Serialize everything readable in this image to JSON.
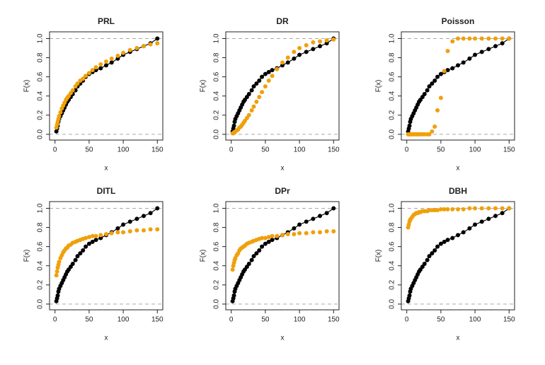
{
  "chart_data": [
    {
      "type": "scatter",
      "title": "PRL",
      "xlabel": "x",
      "ylabel": "F(x)",
      "x": [
        2,
        3,
        4,
        5,
        6,
        8,
        10,
        12,
        14,
        16,
        18,
        20,
        23,
        26,
        30,
        33,
        37,
        41,
        45,
        50,
        55,
        60,
        67,
        75,
        83,
        92,
        100,
        110,
        120,
        130,
        140,
        150
      ],
      "series": [
        {
          "color": "#000000",
          "line": true,
          "values": [
            0.03,
            0.06,
            0.09,
            0.13,
            0.16,
            0.19,
            0.22,
            0.25,
            0.28,
            0.31,
            0.34,
            0.36,
            0.39,
            0.42,
            0.46,
            0.5,
            0.53,
            0.56,
            0.6,
            0.63,
            0.65,
            0.67,
            0.69,
            0.72,
            0.75,
            0.79,
            0.83,
            0.86,
            0.89,
            0.92,
            0.95,
            1.0
          ]
        },
        {
          "color": "#f0a00a",
          "values": [
            0.07,
            0.1,
            0.13,
            0.16,
            0.19,
            0.23,
            0.27,
            0.3,
            0.33,
            0.36,
            0.38,
            0.4,
            0.43,
            0.46,
            0.5,
            0.53,
            0.56,
            0.58,
            0.61,
            0.64,
            0.67,
            0.7,
            0.73,
            0.76,
            0.79,
            0.82,
            0.85,
            0.88,
            0.9,
            0.92,
            0.94,
            0.95
          ]
        }
      ],
      "xlim": [
        -8,
        158
      ],
      "ylim": [
        -0.06,
        1.07
      ],
      "xticks": [
        0,
        50,
        100,
        150
      ],
      "yticks": [
        {
          "value": 0,
          "label": "0.0"
        },
        {
          "value": 0.2,
          "label": "0.2"
        },
        {
          "value": 0.4,
          "label": "0.4"
        },
        {
          "value": 0.6,
          "label": "0.6"
        },
        {
          "value": 0.8,
          "label": "0.8"
        },
        {
          "value": 1,
          "label": "1.0"
        }
      ],
      "hlines": [
        0,
        1
      ]
    },
    {
      "type": "scatter",
      "title": "DR",
      "xlabel": "x",
      "ylabel": "F(x)",
      "x": [
        2,
        3,
        4,
        5,
        6,
        8,
        10,
        12,
        14,
        16,
        18,
        20,
        23,
        26,
        30,
        33,
        37,
        41,
        45,
        50,
        55,
        60,
        67,
        75,
        83,
        92,
        100,
        110,
        120,
        130,
        140,
        150
      ],
      "series": [
        {
          "color": "#000000",
          "line": true,
          "values": [
            0.03,
            0.06,
            0.09,
            0.13,
            0.16,
            0.19,
            0.22,
            0.25,
            0.28,
            0.31,
            0.34,
            0.36,
            0.39,
            0.42,
            0.46,
            0.5,
            0.53,
            0.56,
            0.6,
            0.63,
            0.65,
            0.67,
            0.69,
            0.72,
            0.75,
            0.79,
            0.83,
            0.86,
            0.89,
            0.92,
            0.95,
            1.0
          ]
        },
        {
          "color": "#f0a00a",
          "values": [
            0.01,
            0.01,
            0.02,
            0.02,
            0.03,
            0.04,
            0.05,
            0.07,
            0.08,
            0.1,
            0.12,
            0.14,
            0.17,
            0.2,
            0.25,
            0.29,
            0.34,
            0.39,
            0.44,
            0.5,
            0.56,
            0.61,
            0.68,
            0.75,
            0.8,
            0.86,
            0.9,
            0.93,
            0.96,
            0.97,
            0.98,
            0.99
          ]
        }
      ],
      "xlim": [
        -8,
        158
      ],
      "ylim": [
        -0.06,
        1.07
      ],
      "xticks": [
        0,
        50,
        100,
        150
      ],
      "yticks": [
        {
          "value": 0,
          "label": "0.0"
        },
        {
          "value": 0.2,
          "label": "0.2"
        },
        {
          "value": 0.4,
          "label": "0.4"
        },
        {
          "value": 0.6,
          "label": "0.6"
        },
        {
          "value": 0.8,
          "label": "0.8"
        },
        {
          "value": 1,
          "label": "1.0"
        }
      ],
      "hlines": [
        0,
        1
      ]
    },
    {
      "type": "scatter",
      "title": "Poisson",
      "xlabel": "x",
      "ylabel": "F(x)",
      "x": [
        2,
        3,
        4,
        5,
        6,
        8,
        10,
        12,
        14,
        16,
        18,
        20,
        23,
        26,
        30,
        33,
        37,
        41,
        45,
        50,
        55,
        60,
        67,
        75,
        83,
        92,
        100,
        110,
        120,
        130,
        140,
        150
      ],
      "series": [
        {
          "color": "#000000",
          "line": true,
          "values": [
            0.03,
            0.06,
            0.09,
            0.13,
            0.16,
            0.19,
            0.22,
            0.25,
            0.28,
            0.31,
            0.34,
            0.36,
            0.39,
            0.42,
            0.46,
            0.5,
            0.53,
            0.56,
            0.6,
            0.63,
            0.65,
            0.67,
            0.69,
            0.72,
            0.75,
            0.79,
            0.83,
            0.86,
            0.89,
            0.92,
            0.95,
            1.0
          ]
        },
        {
          "color": "#f0a00a",
          "values": [
            0,
            0,
            0,
            0,
            0,
            0,
            0,
            0,
            0,
            0,
            0,
            0,
            0,
            0,
            0,
            0,
            0.03,
            0.08,
            0.25,
            0.38,
            0.66,
            0.87,
            0.97,
            1.0,
            1.0,
            1.0,
            1.0,
            1.0,
            1.0,
            1.0,
            1.0,
            1.0
          ]
        }
      ],
      "xlim": [
        -8,
        158
      ],
      "ylim": [
        -0.06,
        1.07
      ],
      "xticks": [
        0,
        50,
        100,
        150
      ],
      "yticks": [
        {
          "value": 0,
          "label": "0.0"
        },
        {
          "value": 0.2,
          "label": "0.2"
        },
        {
          "value": 0.4,
          "label": "0.4"
        },
        {
          "value": 0.6,
          "label": "0.6"
        },
        {
          "value": 0.8,
          "label": "0.8"
        },
        {
          "value": 1,
          "label": "1.0"
        }
      ],
      "hlines": [
        0,
        1
      ]
    },
    {
      "type": "scatter",
      "title": "DITL",
      "xlabel": "x",
      "ylabel": "F(x)",
      "x": [
        2,
        3,
        4,
        5,
        6,
        8,
        10,
        12,
        14,
        16,
        18,
        20,
        23,
        26,
        30,
        33,
        37,
        41,
        45,
        50,
        55,
        60,
        67,
        75,
        83,
        92,
        100,
        110,
        120,
        130,
        140,
        150
      ],
      "series": [
        {
          "color": "#000000",
          "line": true,
          "values": [
            0.03,
            0.06,
            0.09,
            0.13,
            0.16,
            0.19,
            0.22,
            0.25,
            0.28,
            0.31,
            0.34,
            0.36,
            0.39,
            0.42,
            0.46,
            0.5,
            0.53,
            0.56,
            0.6,
            0.63,
            0.65,
            0.67,
            0.69,
            0.72,
            0.75,
            0.79,
            0.83,
            0.86,
            0.89,
            0.92,
            0.95,
            1.0
          ]
        },
        {
          "color": "#f0a00a",
          "values": [
            0.3,
            0.34,
            0.38,
            0.41,
            0.44,
            0.48,
            0.51,
            0.54,
            0.56,
            0.58,
            0.59,
            0.61,
            0.62,
            0.64,
            0.65,
            0.66,
            0.67,
            0.68,
            0.69,
            0.7,
            0.71,
            0.71,
            0.72,
            0.73,
            0.74,
            0.75,
            0.75,
            0.76,
            0.77,
            0.77,
            0.78,
            0.78
          ]
        }
      ],
      "xlim": [
        -8,
        158
      ],
      "ylim": [
        -0.06,
        1.07
      ],
      "xticks": [
        0,
        50,
        100,
        150
      ],
      "yticks": [
        {
          "value": 0,
          "label": "0.0"
        },
        {
          "value": 0.2,
          "label": "0.2"
        },
        {
          "value": 0.4,
          "label": "0.4"
        },
        {
          "value": 0.6,
          "label": "0.6"
        },
        {
          "value": 0.8,
          "label": "0.8"
        },
        {
          "value": 1,
          "label": "1.0"
        }
      ],
      "hlines": [
        0,
        1
      ]
    },
    {
      "type": "scatter",
      "title": "DPr",
      "xlabel": "x",
      "ylabel": "F(x)",
      "x": [
        2,
        3,
        4,
        5,
        6,
        8,
        10,
        12,
        14,
        16,
        18,
        20,
        23,
        26,
        30,
        33,
        37,
        41,
        45,
        50,
        55,
        60,
        67,
        75,
        83,
        92,
        100,
        110,
        120,
        130,
        140,
        150
      ],
      "series": [
        {
          "color": "#000000",
          "line": true,
          "values": [
            0.03,
            0.06,
            0.09,
            0.13,
            0.16,
            0.19,
            0.22,
            0.25,
            0.28,
            0.31,
            0.34,
            0.36,
            0.39,
            0.42,
            0.46,
            0.5,
            0.53,
            0.56,
            0.6,
            0.63,
            0.65,
            0.67,
            0.69,
            0.72,
            0.75,
            0.79,
            0.83,
            0.86,
            0.89,
            0.92,
            0.95,
            1.0
          ]
        },
        {
          "color": "#f0a00a",
          "values": [
            0.36,
            0.4,
            0.43,
            0.46,
            0.48,
            0.51,
            0.53,
            0.56,
            0.58,
            0.59,
            0.6,
            0.61,
            0.63,
            0.64,
            0.65,
            0.66,
            0.67,
            0.68,
            0.69,
            0.69,
            0.7,
            0.71,
            0.71,
            0.72,
            0.73,
            0.73,
            0.74,
            0.74,
            0.75,
            0.75,
            0.76,
            0.76
          ]
        }
      ],
      "xlim": [
        -8,
        158
      ],
      "ylim": [
        -0.06,
        1.07
      ],
      "xticks": [
        0,
        50,
        100,
        150
      ],
      "yticks": [
        {
          "value": 0,
          "label": "0.0"
        },
        {
          "value": 0.2,
          "label": "0.2"
        },
        {
          "value": 0.4,
          "label": "0.4"
        },
        {
          "value": 0.6,
          "label": "0.6"
        },
        {
          "value": 0.8,
          "label": "0.8"
        },
        {
          "value": 1,
          "label": "1.0"
        }
      ],
      "hlines": [
        0,
        1
      ]
    },
    {
      "type": "scatter",
      "title": "DBH",
      "xlabel": "x",
      "ylabel": "F(x)",
      "x": [
        2,
        3,
        4,
        5,
        6,
        8,
        10,
        12,
        14,
        16,
        18,
        20,
        23,
        26,
        30,
        33,
        37,
        41,
        45,
        50,
        55,
        60,
        67,
        75,
        83,
        92,
        100,
        110,
        120,
        130,
        140,
        150
      ],
      "series": [
        {
          "color": "#000000",
          "line": true,
          "values": [
            0.03,
            0.06,
            0.09,
            0.13,
            0.16,
            0.19,
            0.22,
            0.25,
            0.28,
            0.31,
            0.34,
            0.36,
            0.39,
            0.42,
            0.46,
            0.5,
            0.53,
            0.56,
            0.6,
            0.63,
            0.65,
            0.67,
            0.69,
            0.72,
            0.75,
            0.79,
            0.83,
            0.86,
            0.89,
            0.92,
            0.95,
            1.0
          ]
        },
        {
          "color": "#f0a00a",
          "values": [
            0.8,
            0.83,
            0.86,
            0.88,
            0.89,
            0.91,
            0.93,
            0.94,
            0.95,
            0.95,
            0.96,
            0.96,
            0.97,
            0.97,
            0.97,
            0.98,
            0.98,
            0.98,
            0.98,
            0.99,
            0.99,
            0.99,
            0.99,
            0.99,
            0.99,
            1.0,
            1.0,
            1.0,
            1.0,
            1.0,
            1.0,
            1.0
          ]
        }
      ],
      "xlim": [
        -8,
        158
      ],
      "ylim": [
        -0.06,
        1.07
      ],
      "xticks": [
        0,
        50,
        100,
        150
      ],
      "yticks": [
        {
          "value": 0,
          "label": "0.0"
        },
        {
          "value": 0.2,
          "label": "0.2"
        },
        {
          "value": 0.4,
          "label": "0.4"
        },
        {
          "value": 0.6,
          "label": "0.6"
        },
        {
          "value": 0.8,
          "label": "0.8"
        },
        {
          "value": 1,
          "label": "1.0"
        }
      ],
      "hlines": [
        0,
        1
      ]
    }
  ]
}
